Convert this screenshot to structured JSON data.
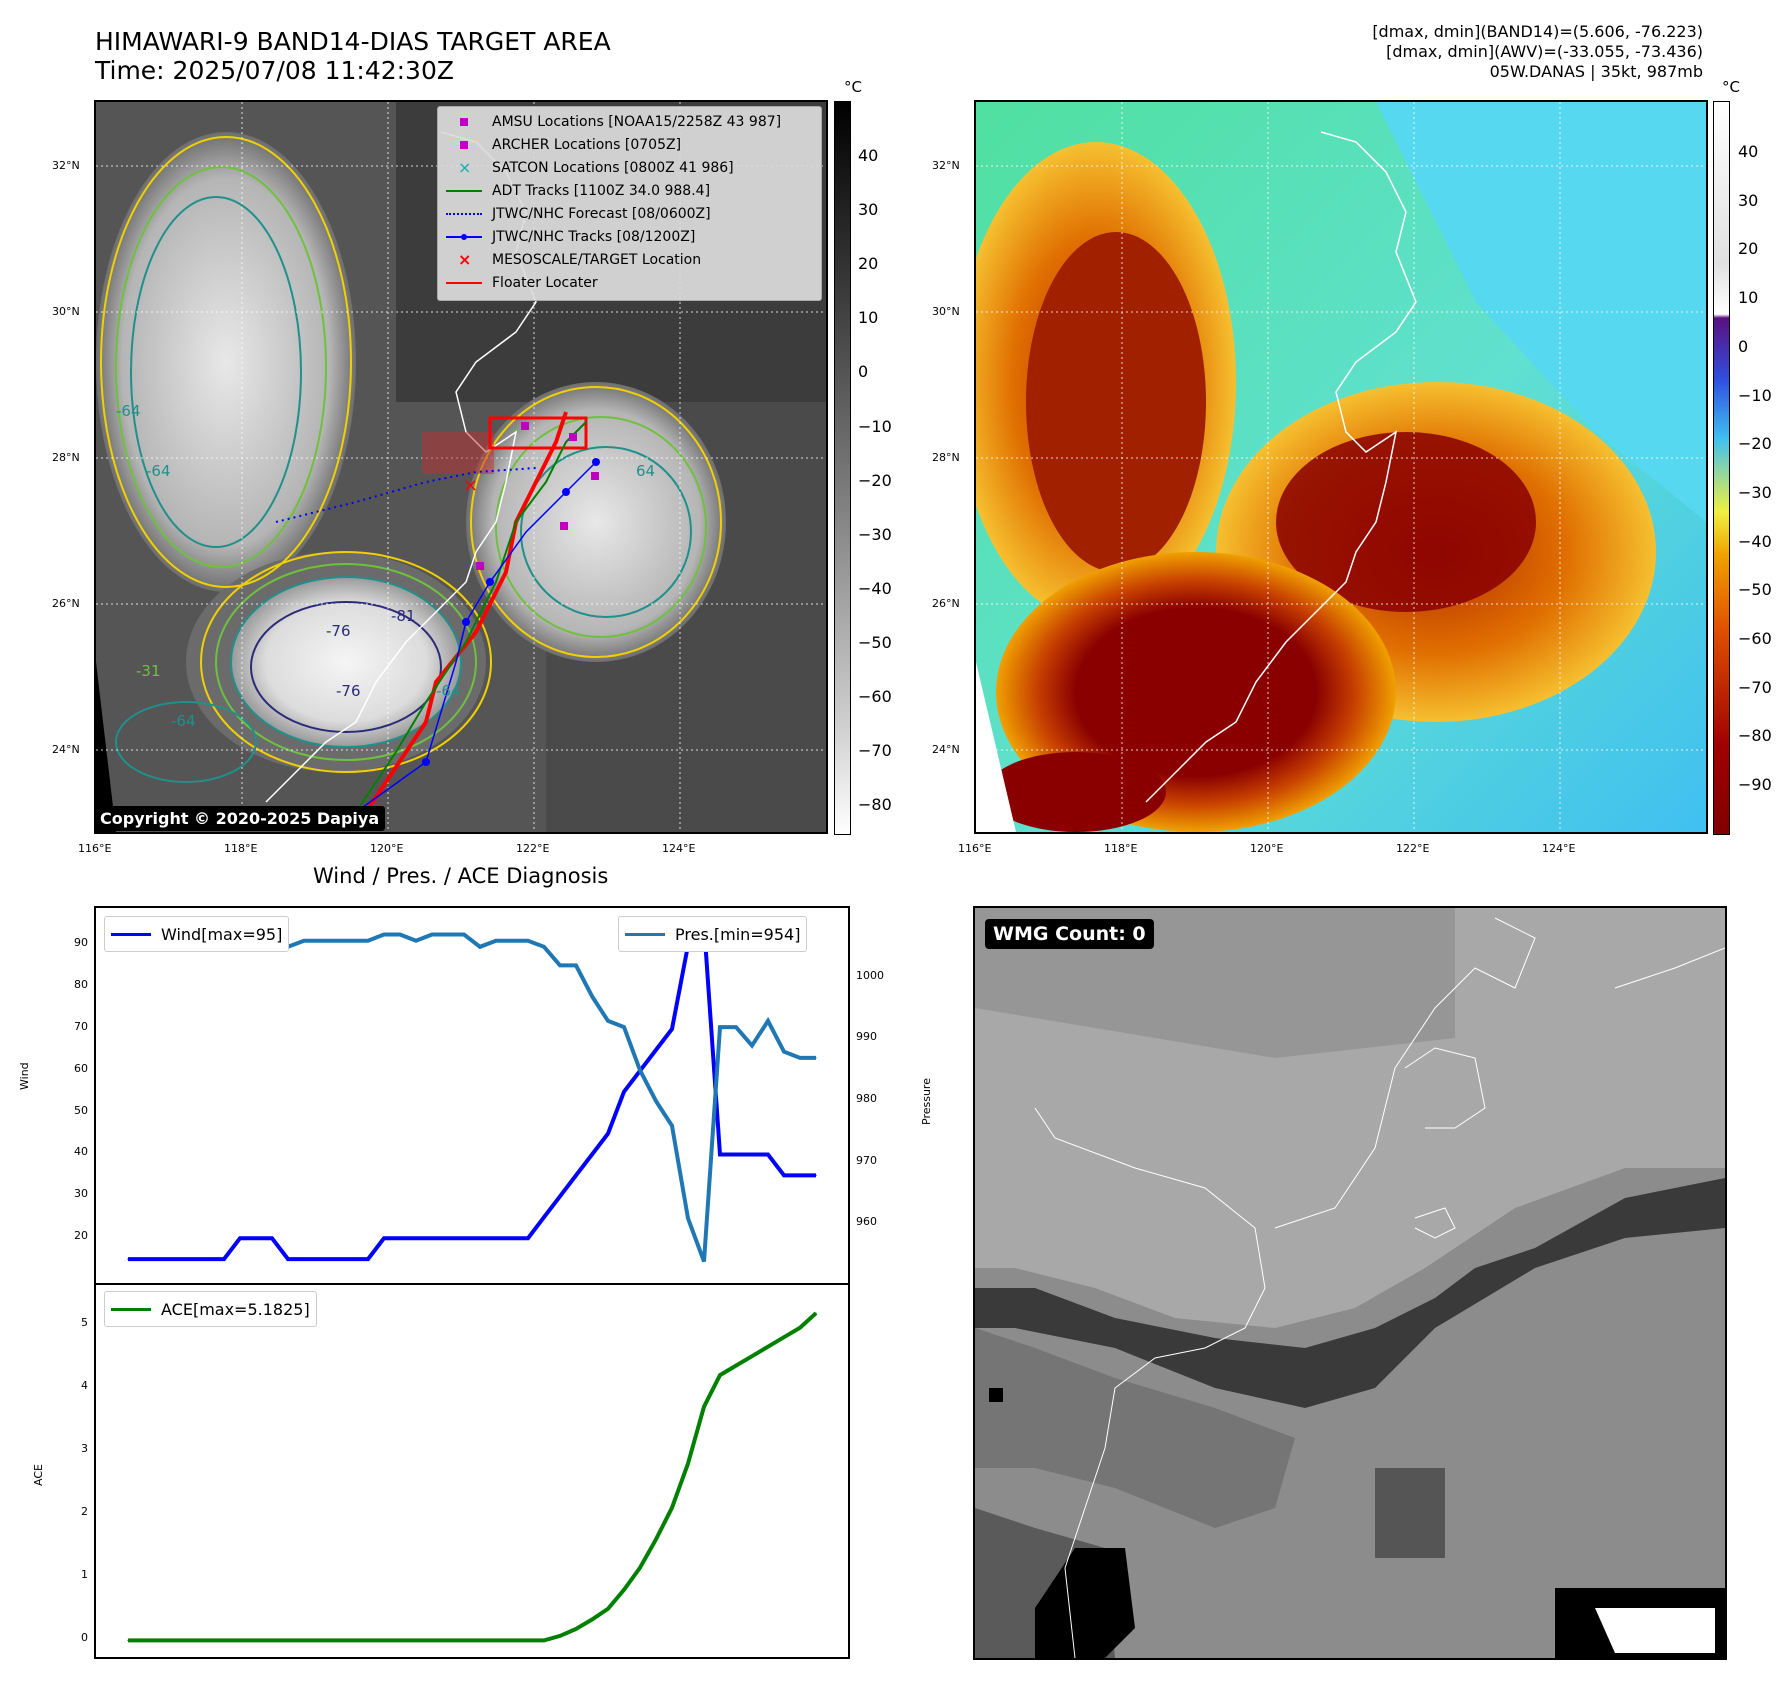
{
  "header": {
    "title": "HIMAWARI-9 BAND14-DIAS TARGET AREA",
    "time": "Time: 2025/07/08 11:42:30Z",
    "stat_band14": "[dmax, dmin](BAND14)=(5.606, -76.223)",
    "stat_awv": "[dmax, dmin](AWV)=(-33.055, -73.436)",
    "storm": "05W.DANAS | 35kt, 987mb"
  },
  "map": {
    "lat_labels": [
      "32°N",
      "30°N",
      "28°N",
      "26°N",
      "24°N"
    ],
    "lon_labels": [
      "116°E",
      "118°E",
      "120°E",
      "122°E",
      "124°E"
    ],
    "copyright": "Copyright © 2020-2025 Dapiya",
    "colorbar_unit": "°C",
    "colorbar_left_ticks": [
      "40",
      "30",
      "20",
      "10",
      "0",
      "−10",
      "−20",
      "−30",
      "−40",
      "−50",
      "−60",
      "−70",
      "−80"
    ],
    "colorbar_right_ticks": [
      "40",
      "30",
      "20",
      "10",
      "0",
      "−10",
      "−20",
      "−30",
      "−40",
      "−50",
      "−60",
      "−70",
      "−80",
      "−90"
    ],
    "contour_labels": [
      "-76",
      "-81",
      "-76",
      "-64",
      "-64",
      "-64",
      "-31",
      "-64",
      "64"
    ],
    "legend": [
      {
        "label": "AMSU Locations [NOAA15/2258Z 43 987]",
        "marker": "square",
        "color": "#c000c0"
      },
      {
        "label": "ARCHER Locations [0705Z]",
        "marker": "square",
        "color": "#c000c0"
      },
      {
        "label": "SATCON Locations [0800Z 41 986]",
        "marker": "x",
        "color": "#10b0b0"
      },
      {
        "label": "ADT Tracks [1100Z 34.0 988.4]",
        "marker": "line",
        "color": "#008000"
      },
      {
        "label": "JTWC/NHC Forecast [08/0600Z]",
        "marker": "dotted",
        "color": "#0000ff"
      },
      {
        "label": "JTWC/NHC Tracks [08/1200Z]",
        "marker": "line-dot",
        "color": "#0000ff"
      },
      {
        "label": "MESOSCALE/TARGET Location",
        "marker": "x",
        "color": "#ff0000"
      },
      {
        "label": "Floater Locater",
        "marker": "line",
        "color": "#ff0000"
      }
    ]
  },
  "diagnosis": {
    "title": "Wind / Pres. / ACE Diagnosis",
    "wind_legend": "Wind[max=95]",
    "pres_legend": "Pres.[min=954]",
    "ace_legend": "ACE[max=5.1825]",
    "wind_ylabel": "Wind",
    "pres_ylabel": "Pressure",
    "ace_ylabel": "ACE"
  },
  "wmg": {
    "label": "WMG Count: 0"
  },
  "chart_data": [
    {
      "type": "line",
      "ylabel": "Wind",
      "ylim": [
        10,
        97
      ],
      "yticks": [
        20,
        30,
        40,
        50,
        60,
        70,
        80,
        90
      ],
      "series": [
        {
          "name": "Wind[max=95]",
          "color": "#0000ff",
          "x": [
            0,
            1,
            2,
            3,
            4,
            5,
            6,
            7,
            8,
            9,
            10,
            11,
            12,
            13,
            14,
            15,
            16,
            17,
            18,
            19,
            20,
            21,
            22,
            23,
            24,
            25,
            26,
            27,
            28,
            29,
            30,
            31,
            32,
            33,
            34,
            35,
            36,
            37,
            38,
            39,
            40,
            41,
            42,
            43
          ],
          "values": [
            15,
            15,
            15,
            15,
            15,
            15,
            15,
            20,
            20,
            20,
            15,
            15,
            15,
            15,
            15,
            15,
            20,
            20,
            20,
            20,
            20,
            20,
            20,
            20,
            20,
            20,
            25,
            30,
            35,
            40,
            45,
            55,
            60,
            65,
            70,
            90,
            95,
            40,
            40,
            40,
            40,
            35,
            35,
            35
          ]
        }
      ]
    },
    {
      "type": "line",
      "ylabel": "Pressure",
      "ylim": [
        951,
        1010
      ],
      "yticks": [
        960,
        970,
        980,
        990,
        1000
      ],
      "series": [
        {
          "name": "Pres.[min=954]",
          "color": "#1f77b4",
          "x": [
            0,
            1,
            2,
            3,
            4,
            5,
            6,
            7,
            8,
            9,
            10,
            11,
            12,
            13,
            14,
            15,
            16,
            17,
            18,
            19,
            20,
            21,
            22,
            23,
            24,
            25,
            26,
            27,
            28,
            29,
            30,
            31,
            32,
            33,
            34,
            35,
            36,
            37,
            38,
            39,
            40,
            41,
            42,
            43
          ],
          "values": [
            1007,
            1007,
            1007,
            1007,
            1007,
            1005,
            1005,
            1005,
            1005,
            1005,
            1005,
            1006,
            1006,
            1006,
            1006,
            1006,
            1007,
            1007,
            1006,
            1007,
            1007,
            1007,
            1005,
            1006,
            1006,
            1006,
            1005,
            1002,
            1002,
            997,
            993,
            992,
            985,
            980,
            976,
            961,
            954,
            992,
            992,
            989,
            993,
            988,
            987,
            987
          ]
        }
      ]
    },
    {
      "type": "line",
      "ylabel": "ACE",
      "ylim": [
        -0.2,
        5.5
      ],
      "yticks": [
        0,
        1,
        2,
        3,
        4,
        5
      ],
      "series": [
        {
          "name": "ACE[max=5.1825]",
          "color": "#008000",
          "x": [
            0,
            1,
            2,
            3,
            4,
            5,
            6,
            7,
            8,
            9,
            10,
            11,
            12,
            13,
            14,
            15,
            16,
            17,
            18,
            19,
            20,
            21,
            22,
            23,
            24,
            25,
            26,
            27,
            28,
            29,
            30,
            31,
            32,
            33,
            34,
            35,
            36,
            37,
            38,
            39,
            40,
            41,
            42,
            43
          ],
          "values": [
            0,
            0,
            0,
            0,
            0,
            0,
            0,
            0,
            0,
            0,
            0,
            0,
            0,
            0,
            0,
            0,
            0,
            0,
            0,
            0,
            0,
            0,
            0,
            0,
            0,
            0,
            0,
            0.07,
            0.18,
            0.33,
            0.5,
            0.8,
            1.15,
            1.6,
            2.1,
            2.8,
            3.7,
            4.2,
            4.35,
            4.5,
            4.65,
            4.8,
            4.95,
            5.1825
          ]
        }
      ]
    }
  ]
}
